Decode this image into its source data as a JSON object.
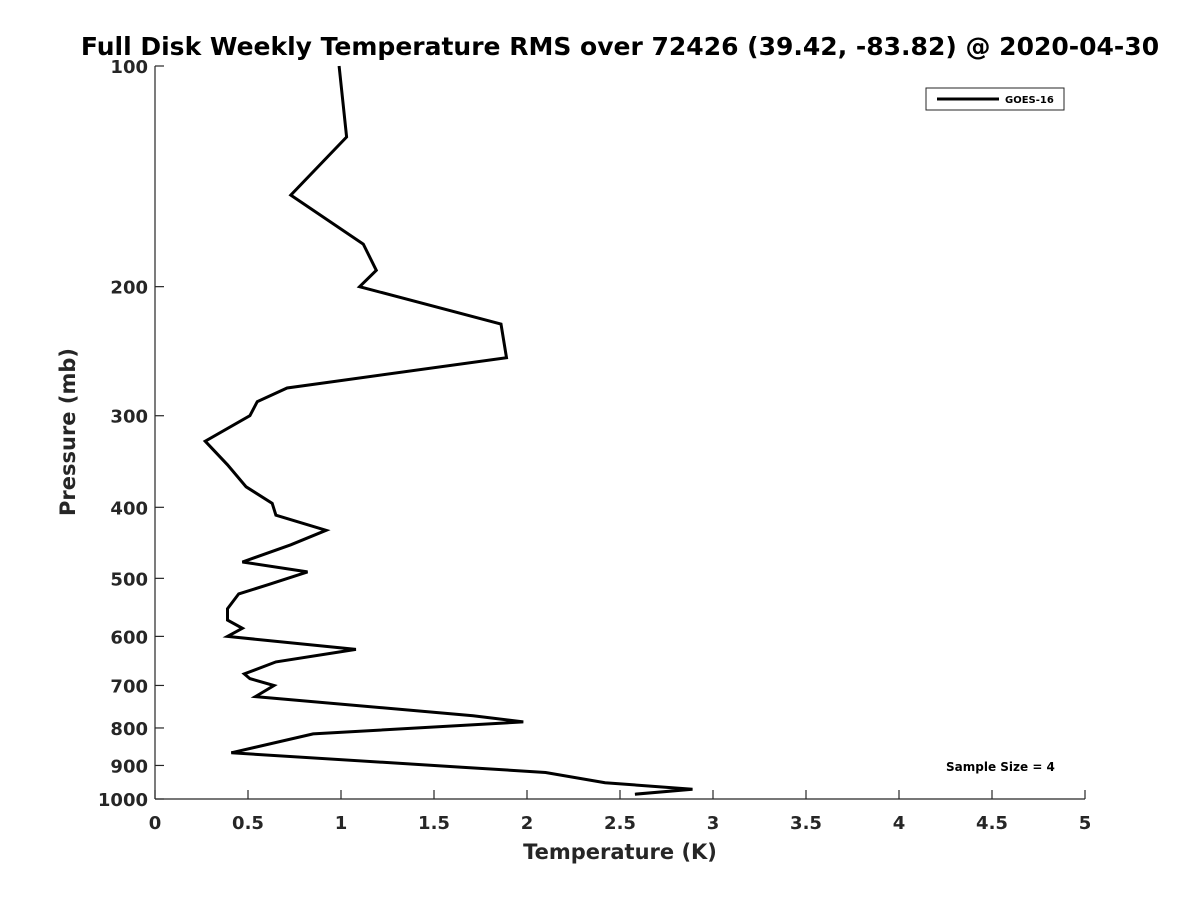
{
  "chart_data": {
    "type": "line",
    "title": "Full Disk Weekly Temperature RMS over 72426 (39.42, -83.82) @ 2020-04-30",
    "xlabel": "Temperature (K)",
    "ylabel": "Pressure (mb)",
    "xlim": [
      0,
      5
    ],
    "ylim": [
      100,
      1000
    ],
    "y_scale": "log",
    "y_reversed": true,
    "grid": false,
    "legend_position": "top-right",
    "x_ticks": [
      0,
      0.5,
      1,
      1.5,
      2,
      2.5,
      3,
      3.5,
      4,
      4.5,
      5
    ],
    "x_tick_labels": [
      "0",
      "0.5",
      "1",
      "1.5",
      "2",
      "2.5",
      "3",
      "3.5",
      "4",
      "4.5",
      "5"
    ],
    "y_ticks": [
      100,
      200,
      300,
      400,
      500,
      600,
      700,
      800,
      900,
      1000
    ],
    "y_tick_labels": [
      "100",
      "200",
      "300",
      "400",
      "500",
      "600",
      "700",
      "800",
      "900",
      "1000"
    ],
    "series": [
      {
        "name": "GOES-16",
        "color": "#000000",
        "points": [
          [
            0.99,
            100
          ],
          [
            1.03,
            125
          ],
          [
            0.73,
            150
          ],
          [
            1.12,
            175
          ],
          [
            1.19,
            190
          ],
          [
            1.1,
            200
          ],
          [
            1.86,
            225
          ],
          [
            1.89,
            250
          ],
          [
            0.71,
            275
          ],
          [
            0.55,
            287
          ],
          [
            0.51,
            300
          ],
          [
            0.27,
            325
          ],
          [
            0.39,
            350
          ],
          [
            0.49,
            375
          ],
          [
            0.63,
            395
          ],
          [
            0.65,
            410
          ],
          [
            0.92,
            430
          ],
          [
            0.73,
            450
          ],
          [
            0.47,
            475
          ],
          [
            0.82,
            490
          ],
          [
            0.61,
            510
          ],
          [
            0.45,
            525
          ],
          [
            0.39,
            550
          ],
          [
            0.39,
            570
          ],
          [
            0.47,
            585
          ],
          [
            0.39,
            600
          ],
          [
            1.08,
            625
          ],
          [
            0.65,
            650
          ],
          [
            0.48,
            675
          ],
          [
            0.51,
            685
          ],
          [
            0.64,
            700
          ],
          [
            0.54,
            725
          ],
          [
            1.71,
            770
          ],
          [
            1.98,
            785
          ],
          [
            0.85,
            815
          ],
          [
            0.41,
            865
          ],
          [
            1.65,
            905
          ],
          [
            2.1,
            920
          ],
          [
            2.42,
            950
          ],
          [
            2.89,
            970
          ],
          [
            2.58,
            985
          ]
        ]
      }
    ],
    "annotation": "Sample Size = 4"
  }
}
